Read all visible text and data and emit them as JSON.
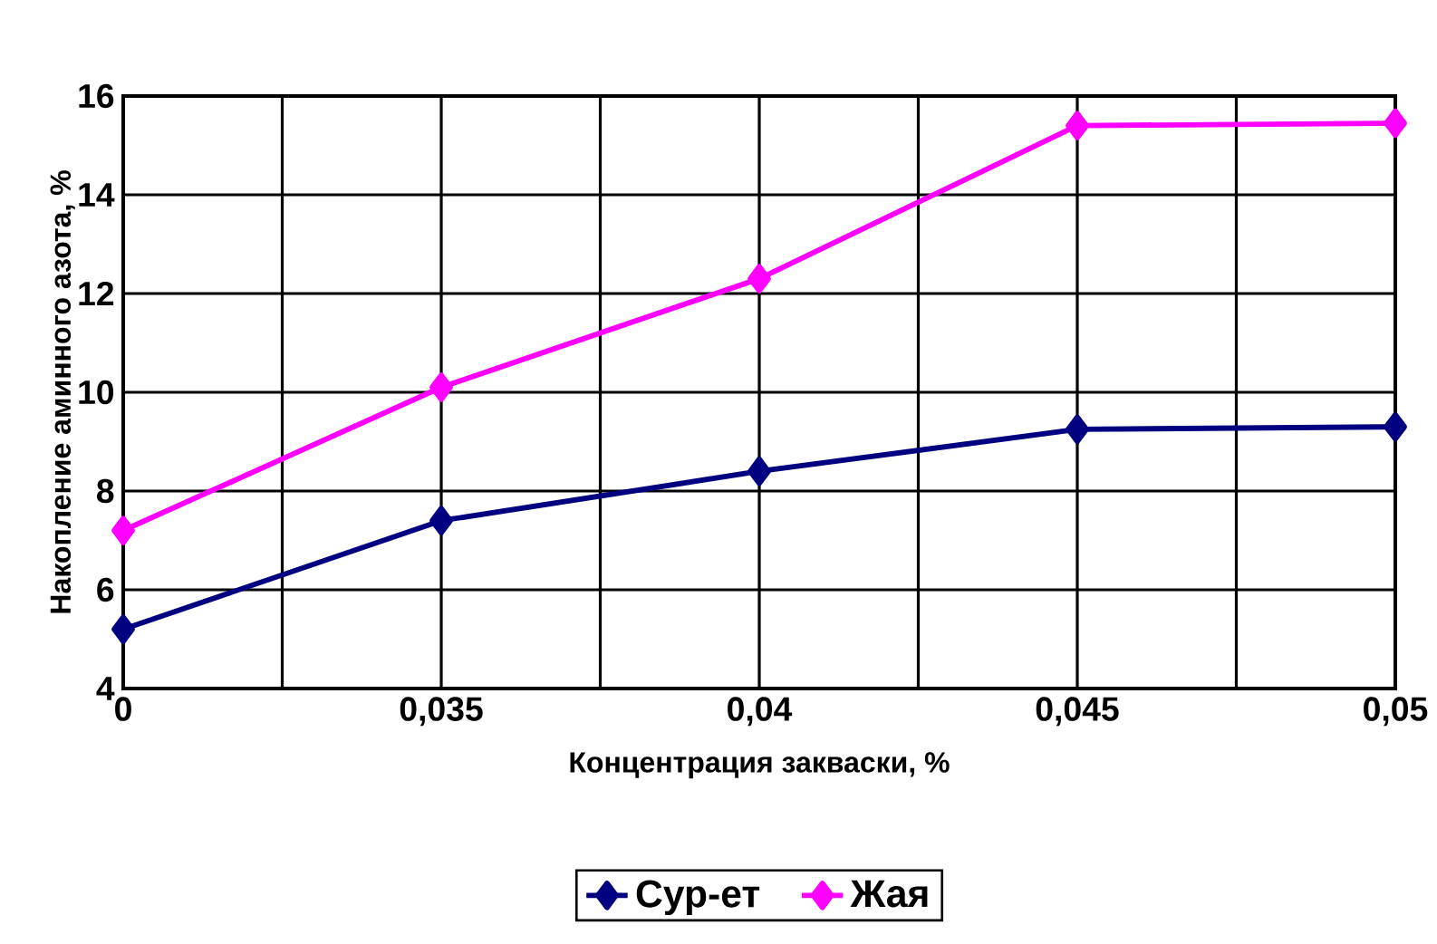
{
  "chart_data": {
    "type": "line",
    "xlabel": "Концентрация закваски, %",
    "ylabel": "Накопление аминного азота, %",
    "categories": [
      "0",
      "0,035",
      "0,04",
      "0,045",
      "0,05"
    ],
    "series": [
      {
        "name": "Сур-ет",
        "color": "#000080",
        "values": [
          5.2,
          7.4,
          8.4,
          9.25,
          9.3
        ]
      },
      {
        "name": "Жая",
        "color": "#ff00ff",
        "values": [
          7.2,
          10.1,
          12.3,
          15.4,
          15.45
        ]
      }
    ],
    "ylim": [
      4,
      16
    ],
    "yticks": [
      4,
      6,
      8,
      10,
      12,
      14,
      16
    ],
    "grid": true,
    "legend": "bottom",
    "marker": "diamond",
    "line_style": "solid"
  }
}
